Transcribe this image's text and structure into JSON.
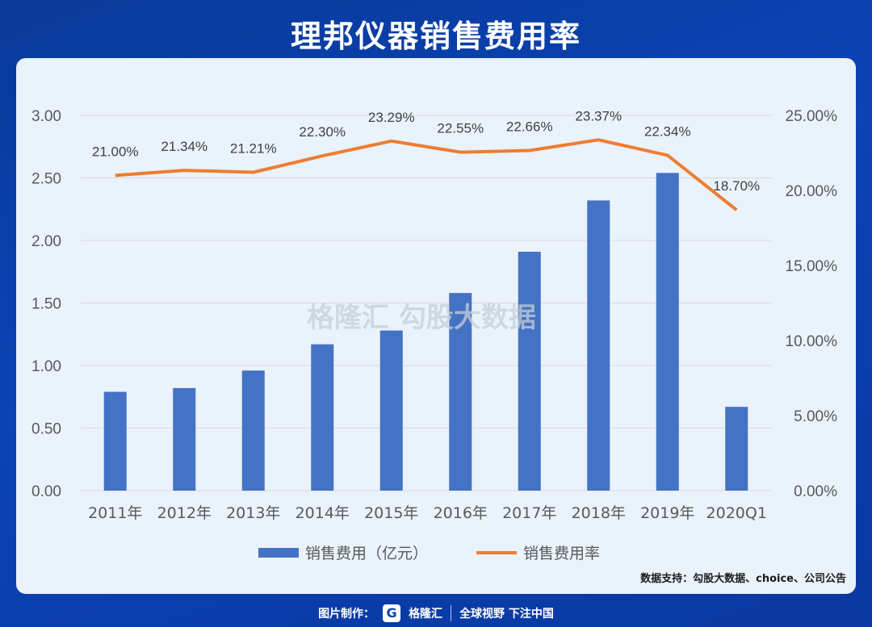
{
  "title": "理邦仪器销售费用率",
  "watermark": "勾股大数据",
  "watermark_brand": "格隆汇",
  "source": "数据支持：勾股大数据、choice、公司公告",
  "footer": {
    "made_by": "图片制作：",
    "brand": "格隆汇",
    "slogan": "全球视野 下注中国"
  },
  "colors": {
    "bar": "#4472c4",
    "line": "#ed7d31",
    "grid": "#d9d9d9",
    "axis_text": "#595959"
  },
  "chart_data": {
    "type": "bar+line",
    "categories": [
      "2011年",
      "2012年",
      "2013年",
      "2014年",
      "2015年",
      "2016年",
      "2017年",
      "2018年",
      "2019年",
      "2020Q1"
    ],
    "series": [
      {
        "name": "销售费用（亿元）",
        "type": "bar",
        "axis": "left",
        "values": [
          0.79,
          0.82,
          0.96,
          1.17,
          1.28,
          1.58,
          1.91,
          2.32,
          2.54,
          0.67
        ]
      },
      {
        "name": "销售费用率",
        "type": "line",
        "axis": "right",
        "values": [
          21.0,
          21.34,
          21.21,
          22.3,
          23.29,
          22.55,
          22.66,
          23.37,
          22.34,
          18.7
        ],
        "labels": [
          "21.00%",
          "21.34%",
          "21.21%",
          "22.30%",
          "23.29%",
          "22.55%",
          "22.66%",
          "23.37%",
          "22.34%",
          "18.70%"
        ]
      }
    ],
    "y_left": {
      "ylim": [
        0,
        3
      ],
      "ticks": [
        "0.00",
        "0.50",
        "1.00",
        "1.50",
        "2.00",
        "2.50",
        "3.00"
      ]
    },
    "y_right": {
      "ylim": [
        0,
        25
      ],
      "ticks": [
        "0.00%",
        "5.00%",
        "10.00%",
        "15.00%",
        "20.00%",
        "25.00%"
      ]
    },
    "grid": true,
    "legend": "bottom"
  }
}
